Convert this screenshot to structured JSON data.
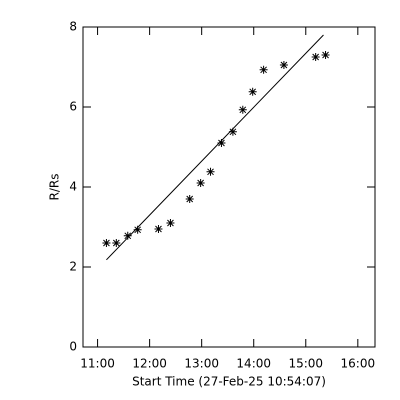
{
  "chart_data": {
    "type": "scatter",
    "xlabel": "Start Time (27-Feb-25 10:54:07)",
    "ylabel": "R/Rs",
    "x": [
      11.17,
      11.36,
      11.58,
      11.77,
      12.17,
      12.4,
      12.77,
      12.98,
      13.17,
      13.38,
      13.6,
      13.79,
      13.98,
      14.19,
      14.58,
      15.19,
      15.38
    ],
    "values": [
      2.6,
      2.6,
      2.78,
      2.93,
      2.95,
      3.1,
      3.7,
      4.1,
      4.38,
      5.1,
      5.38,
      5.93,
      6.38,
      6.93,
      7.05,
      7.25,
      7.3
    ],
    "fit": {
      "x": [
        11.17,
        15.34
      ],
      "values": [
        2.18,
        7.8
      ]
    },
    "color": "#000000",
    "xlim": [
      10.72,
      16.33
    ],
    "xticks": [
      {
        "value": 11,
        "label": "11:00"
      },
      {
        "value": 12,
        "label": "12:00"
      },
      {
        "value": 13,
        "label": "13:00"
      },
      {
        "value": 14,
        "label": "14:00"
      },
      {
        "value": 15,
        "label": "15:00"
      },
      {
        "value": 16,
        "label": "16:00"
      }
    ],
    "ylim": [
      0,
      8
    ],
    "yticks": [
      0,
      2,
      4,
      6,
      8
    ]
  }
}
